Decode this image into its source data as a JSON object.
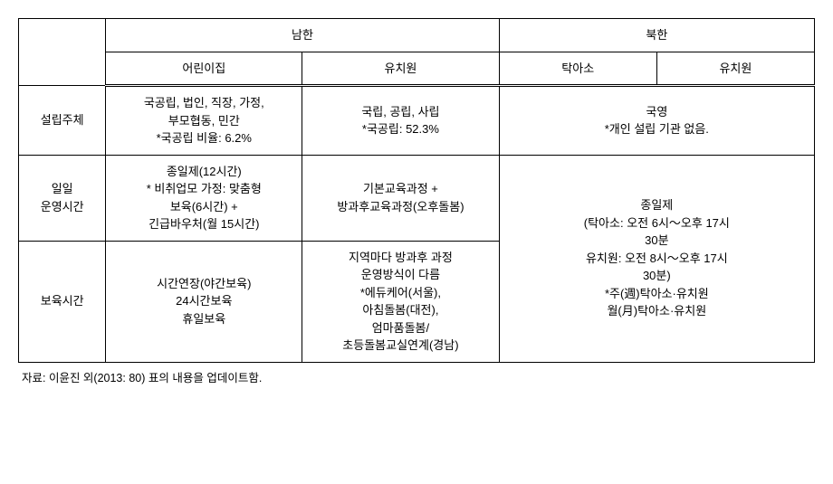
{
  "table": {
    "header": {
      "south": "남한",
      "north": "북한",
      "south_col1": "어린이집",
      "south_col2": "유치원",
      "north_col1": "탁아소",
      "north_col2": "유치원"
    },
    "rows": {
      "founder": {
        "label": "설립주체",
        "south1": "국공립, 법인, 직장, 가정,\n부모협동, 민간\n*국공립 비율: 6.2%",
        "south2": "국립, 공립, 사립\n*국공립: 52.3%",
        "north": "국영\n*개인 설립 기관 없음."
      },
      "daily_hours": {
        "label": "일일\n운영시간",
        "south1": "종일제(12시간)\n* 비취업모 가정: 맞춤형\n보육(6시간) +\n긴급바우처(월 15시간)",
        "south2": "기본교육과정 +\n방과후교육과정(오후돌봄)"
      },
      "care_hours": {
        "label": "보육시간",
        "south1": "시간연장(야간보육)\n24시간보육\n휴일보육",
        "south2": "지역마다 방과후 과정\n운영방식이 다름\n*에듀케어(서울),\n아침돌봄(대전),\n엄마품돌봄/\n초등돌봄교실연계(경남)",
        "north_combined": "종일제\n(탁아소: 오전 6시～오후 17시\n30분\n유치원: 오전 8시～오후 17시\n30분)\n*주(週)탁아소·유치원\n월(月)탁아소·유치원"
      }
    },
    "source": "자료: 이윤진 외(2013: 80) 표의 내용을 업데이트함."
  }
}
